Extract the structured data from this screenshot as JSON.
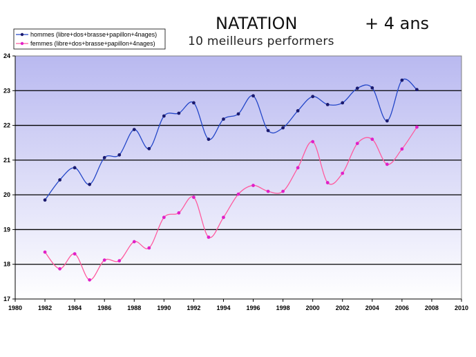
{
  "header": {
    "title": "NATATION",
    "subtitle": "+ 4 ans",
    "subtitle2": "10 meilleurs performers"
  },
  "chart_data": {
    "type": "line",
    "title": "NATATION",
    "xlim": [
      1980,
      2010
    ],
    "ylim": [
      17,
      24
    ],
    "xticks": [
      1980,
      1982,
      1984,
      1986,
      1988,
      1990,
      1992,
      1994,
      1996,
      1998,
      2000,
      2002,
      2004,
      2006,
      2008,
      2010
    ],
    "yticks": [
      17,
      18,
      19,
      20,
      21,
      22,
      23,
      24
    ],
    "legend_position": "top-left",
    "smooth": true,
    "series": [
      {
        "name": "hommes (libre+dos+brasse+papillon+4nages)",
        "color": "#2346c8",
        "x": [
          1982,
          1983,
          1984,
          1985,
          1986,
          1987,
          1988,
          1989,
          1990,
          1991,
          1992,
          1993,
          1994,
          1995,
          1996,
          1997,
          1998,
          1999,
          2000,
          2001,
          2002,
          2003,
          2004,
          2005,
          2006,
          2007
        ],
        "y": [
          19.85,
          20.43,
          20.78,
          20.3,
          21.07,
          21.15,
          21.88,
          21.33,
          22.27,
          22.35,
          22.65,
          21.6,
          22.18,
          22.33,
          22.85,
          21.85,
          21.93,
          22.42,
          22.83,
          22.6,
          22.65,
          23.07,
          23.08,
          22.13,
          23.3,
          23.03
        ]
      },
      {
        "name": "femmes (libre+dos+brasse+papillon+4nages)",
        "color": "#ff5a9e",
        "x": [
          1982,
          1983,
          1984,
          1985,
          1986,
          1987,
          1988,
          1989,
          1990,
          1991,
          1992,
          1993,
          1994,
          1995,
          1996,
          1997,
          1998,
          1999,
          2000,
          2001,
          2002,
          2003,
          2004,
          2005,
          2006,
          2007
        ],
        "y": [
          18.35,
          17.87,
          18.3,
          17.55,
          18.12,
          18.1,
          18.65,
          18.47,
          19.35,
          19.48,
          19.93,
          18.78,
          19.35,
          20.02,
          20.27,
          20.1,
          20.1,
          20.78,
          21.53,
          20.35,
          20.62,
          21.48,
          21.6,
          20.88,
          21.32,
          21.95
        ]
      }
    ]
  }
}
